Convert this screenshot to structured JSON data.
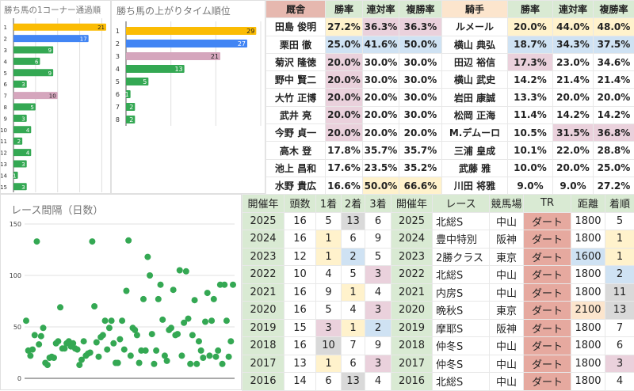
{
  "colors": {
    "first": "#fbbc04",
    "second": "#4285f4",
    "highlight": "#d5a6bd",
    "other": "#34a853"
  },
  "chart_data": [
    {
      "type": "bar",
      "orientation": "horizontal",
      "title": "勝ち馬の1コーナー通過順",
      "categories": [
        "1",
        "2",
        "3",
        "4",
        "5",
        "6",
        "7",
        "8",
        "9",
        "10",
        "11",
        "12",
        "13",
        "14",
        "15"
      ],
      "values": [
        21,
        17,
        9,
        6,
        9,
        3,
        10,
        5,
        3,
        4,
        2,
        4,
        3,
        1,
        3
      ],
      "highlight": [
        1,
        2,
        0,
        0,
        0,
        0,
        3,
        0,
        0,
        0,
        0,
        0,
        0,
        0,
        0
      ],
      "xlim": [
        0,
        21
      ],
      "grid": true
    },
    {
      "type": "bar",
      "orientation": "horizontal",
      "title": "勝ち馬の上がりタイム順位",
      "categories": [
        "1",
        "2",
        "3",
        "4",
        "5",
        "6",
        "7",
        "8"
      ],
      "values": [
        29,
        27,
        21,
        13,
        5,
        1,
        2,
        2
      ],
      "highlight": [
        1,
        2,
        3,
        0,
        0,
        0,
        0,
        0
      ],
      "xlim": [
        0,
        30
      ],
      "grid": true
    },
    {
      "type": "scatter",
      "title": "レース間隔（日数）",
      "ylim": [
        0,
        150
      ],
      "yticks": [
        "0",
        "50",
        "100",
        "150"
      ],
      "grid": true,
      "y": [
        56,
        27,
        22,
        28,
        42,
        133,
        33,
        41,
        49,
        15,
        13,
        20,
        21,
        20,
        34,
        36,
        69,
        29,
        29,
        34,
        36,
        31,
        34,
        29,
        28,
        13,
        18,
        36,
        22,
        24,
        25,
        133,
        70,
        35,
        21,
        40,
        42,
        56,
        28,
        49,
        56,
        34,
        15,
        15,
        38,
        56,
        28,
        85,
        134,
        22,
        49,
        47,
        42,
        15,
        27,
        77,
        27,
        118,
        100,
        43,
        14,
        27,
        77,
        91,
        57,
        22,
        17,
        47,
        49,
        86,
        42,
        43,
        105,
        22,
        54,
        104,
        58,
        14,
        42,
        76,
        14,
        36,
        27,
        20,
        55,
        83,
        22,
        56,
        77,
        21,
        27,
        91,
        14,
        91,
        56,
        21,
        36,
        91
      ]
    }
  ],
  "trainers": {
    "headers": [
      "厩舎",
      "勝率",
      "連対率",
      "複勝率"
    ],
    "rows": [
      [
        "田島 俊明",
        "27.2%",
        "36.3%",
        "36.3%"
      ],
      [
        "栗田 徹",
        "25.0%",
        "41.6%",
        "50.0%"
      ],
      [
        "菊沢 隆徳",
        "20.0%",
        "30.0%",
        "30.0%"
      ],
      [
        "野中 賢二",
        "20.0%",
        "30.0%",
        "30.0%"
      ],
      [
        "大竹 正博",
        "20.0%",
        "20.0%",
        "30.0%"
      ],
      [
        "武井 亮",
        "20.0%",
        "20.0%",
        "30.0%"
      ],
      [
        "今野 貞一",
        "20.0%",
        "20.0%",
        "20.0%"
      ],
      [
        "高木 登",
        "17.8%",
        "35.7%",
        "35.7%"
      ],
      [
        "池上 昌和",
        "17.6%",
        "23.5%",
        "35.2%"
      ],
      [
        "水野 貴広",
        "16.6%",
        "50.0%",
        "66.6%"
      ]
    ],
    "marks": [
      [
        "",
        "y",
        "p",
        "p"
      ],
      [
        "",
        "b",
        "b",
        "b"
      ],
      [
        "",
        "p",
        "",
        ""
      ],
      [
        "",
        "p",
        "",
        ""
      ],
      [
        "",
        "p",
        "",
        ""
      ],
      [
        "",
        "p",
        "",
        ""
      ],
      [
        "",
        "p",
        "",
        ""
      ],
      [
        "",
        "",
        "",
        ""
      ],
      [
        "",
        "",
        "",
        ""
      ],
      [
        "",
        "",
        "y",
        "y"
      ]
    ]
  },
  "jockeys": {
    "headers": [
      "騎手",
      "勝率",
      "連対率",
      "複勝率"
    ],
    "rows": [
      [
        "ルメール",
        "20.0%",
        "44.0%",
        "48.0%"
      ],
      [
        "横山 典弘",
        "18.7%",
        "34.3%",
        "37.5%"
      ],
      [
        "田辺 裕信",
        "17.3%",
        "23.0%",
        "34.6%"
      ],
      [
        "横山 武史",
        "14.2%",
        "21.4%",
        "21.4%"
      ],
      [
        "岩田 康誠",
        "13.3%",
        "20.0%",
        "20.0%"
      ],
      [
        "松岡 正海",
        "11.4%",
        "14.2%",
        "14.2%"
      ],
      [
        "M.デムーロ",
        "10.5%",
        "31.5%",
        "36.8%"
      ],
      [
        "三浦 皇成",
        "10.1%",
        "22.0%",
        "28.8%"
      ],
      [
        "武藤 雅",
        "10.0%",
        "20.0%",
        "25.0%"
      ],
      [
        "川田 将雅",
        "9.0%",
        "9.0%",
        "27.2%"
      ]
    ],
    "marks": [
      [
        "",
        "y",
        "y",
        "y"
      ],
      [
        "",
        "b",
        "b",
        "b"
      ],
      [
        "",
        "p",
        "",
        ""
      ],
      [
        "",
        "",
        "",
        ""
      ],
      [
        "",
        "",
        "",
        ""
      ],
      [
        "",
        "",
        "",
        ""
      ],
      [
        "",
        "",
        "p",
        "p"
      ],
      [
        "",
        "",
        "",
        ""
      ],
      [
        "",
        "",
        "",
        ""
      ],
      [
        "",
        "",
        "",
        ""
      ]
    ]
  },
  "results": {
    "headers": [
      "開催年",
      "頭数",
      "1着",
      "2着",
      "3着",
      "開催年",
      "レース",
      "競馬場",
      "TR",
      "距離",
      "着順"
    ],
    "rows": [
      [
        "2025",
        "16",
        "5",
        "13",
        "6",
        "2025",
        "北総S",
        "中山",
        "ダート",
        "1800",
        "5"
      ],
      [
        "2024",
        "16",
        "1",
        "6",
        "9",
        "2024",
        "豊中特別",
        "阪神",
        "ダート",
        "1800",
        "1"
      ],
      [
        "2023",
        "12",
        "1",
        "2",
        "5",
        "2023",
        "2勝クラス",
        "東京",
        "ダート",
        "1600",
        "1"
      ],
      [
        "2022",
        "10",
        "4",
        "5",
        "3",
        "2022",
        "北総S",
        "中山",
        "ダート",
        "1800",
        "2"
      ],
      [
        "2021",
        "16",
        "9",
        "1",
        "4",
        "2021",
        "内房S",
        "中山",
        "ダート",
        "1800",
        "11"
      ],
      [
        "2020",
        "16",
        "5",
        "4",
        "3",
        "2020",
        "晩秋S",
        "東京",
        "ダート",
        "2100",
        "13"
      ],
      [
        "2019",
        "15",
        "3",
        "1",
        "2",
        "2019",
        "摩耶S",
        "阪神",
        "ダート",
        "1800",
        "7"
      ],
      [
        "2018",
        "16",
        "10",
        "7",
        "9",
        "2018",
        "仲冬S",
        "中山",
        "ダート",
        "1800",
        "6"
      ],
      [
        "2017",
        "13",
        "1",
        "6",
        "3",
        "2017",
        "仲冬S",
        "中山",
        "ダート",
        "1800",
        "3"
      ],
      [
        "2016",
        "14",
        "6",
        "13",
        "4",
        "2016",
        "北総S",
        "中山",
        "ダート",
        "1800",
        "4"
      ]
    ],
    "marks": [
      [
        "",
        "",
        "",
        "g",
        "",
        "",
        "",
        "",
        "",
        "",
        ""
      ],
      [
        "",
        "",
        "y",
        "",
        "",
        "",
        "",
        "",
        "",
        "",
        "y"
      ],
      [
        "",
        "",
        "y",
        "b",
        "",
        "",
        "",
        "",
        "",
        "b",
        "y"
      ],
      [
        "",
        "",
        "",
        "",
        "p",
        "",
        "",
        "",
        "",
        "",
        "b"
      ],
      [
        "",
        "",
        "",
        "y",
        "",
        "",
        "",
        "",
        "",
        "",
        "g"
      ],
      [
        "",
        "",
        "",
        "",
        "p",
        "",
        "",
        "",
        "",
        "o",
        "g"
      ],
      [
        "",
        "",
        "p",
        "y",
        "b",
        "",
        "",
        "",
        "",
        "",
        ""
      ],
      [
        "",
        "",
        "g",
        "",
        "",
        "",
        "",
        "",
        "",
        "",
        ""
      ],
      [
        "",
        "",
        "y",
        "",
        "p",
        "",
        "",
        "",
        "",
        "",
        "p"
      ],
      [
        "",
        "",
        "",
        "g",
        "",
        "",
        "",
        "",
        "",
        "",
        ""
      ]
    ]
  }
}
